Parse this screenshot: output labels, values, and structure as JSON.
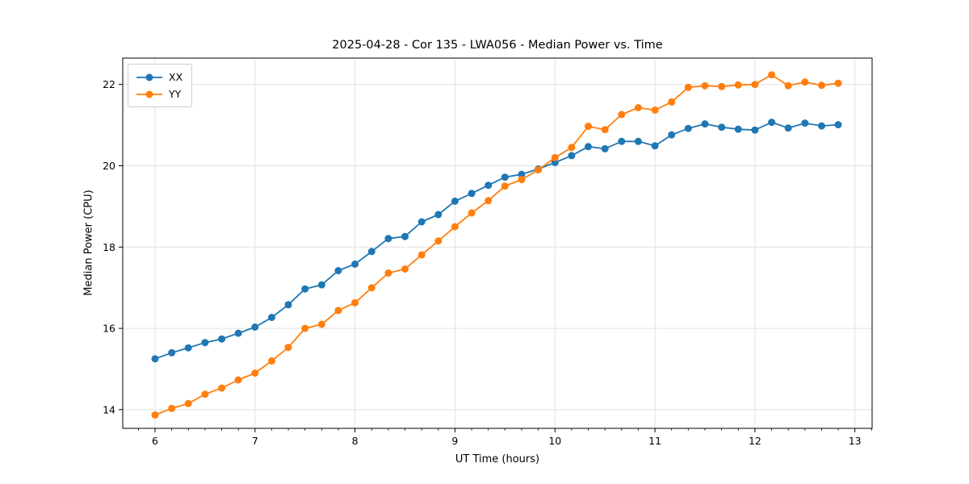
{
  "figure": {
    "title": "2025-04-28 - Cor 135 - LWA056 - Median Power vs. Time"
  },
  "chart_data": {
    "type": "line",
    "title": "2025-04-28 - Cor 135 - LWA056 - Median Power vs. Time",
    "xlabel": "UT Time (hours)",
    "ylabel": "Median Power (CPU)",
    "xlim": [
      5.677,
      13.172
    ],
    "ylim": [
      13.54,
      22.65
    ],
    "xticks": [
      6,
      7,
      8,
      9,
      10,
      11,
      12,
      13
    ],
    "yticks": [
      14,
      16,
      18,
      20,
      22
    ],
    "minor_xtick_interval_hours": 0.1667,
    "grid": true,
    "legend_position": "upper-left",
    "marker": "circle",
    "x": [
      6.0,
      6.167,
      6.333,
      6.5,
      6.667,
      6.833,
      7.0,
      7.167,
      7.333,
      7.5,
      7.667,
      7.833,
      8.0,
      8.167,
      8.333,
      8.5,
      8.667,
      8.833,
      9.0,
      9.167,
      9.333,
      9.5,
      9.667,
      9.833,
      10.0,
      10.167,
      10.333,
      10.5,
      10.667,
      10.833,
      11.0,
      11.167,
      11.333,
      11.5,
      11.667,
      11.833,
      12.0,
      12.167,
      12.333,
      12.5,
      12.667,
      12.833
    ],
    "series": [
      {
        "name": "XX",
        "color": "#1f77b4",
        "values": [
          15.25,
          15.4,
          15.52,
          15.65,
          15.74,
          15.88,
          16.03,
          16.27,
          16.58,
          16.97,
          17.07,
          17.42,
          17.58,
          17.89,
          18.21,
          18.26,
          18.62,
          18.8,
          19.13,
          19.32,
          19.52,
          19.72,
          19.79,
          19.92,
          20.08,
          20.25,
          20.47,
          20.42,
          20.6,
          20.6,
          20.49,
          20.76,
          20.92,
          21.03,
          20.95,
          20.9,
          20.88,
          21.07,
          20.93,
          21.05,
          20.98,
          21.01
        ]
      },
      {
        "name": "YY",
        "color": "#ff7f0e",
        "values": [
          13.87,
          14.03,
          14.15,
          14.38,
          14.53,
          14.73,
          14.9,
          15.2,
          15.53,
          16.0,
          16.1,
          16.44,
          16.63,
          17.0,
          17.36,
          17.46,
          17.81,
          18.15,
          18.5,
          18.84,
          19.14,
          19.5,
          19.66,
          19.9,
          20.2,
          20.45,
          20.97,
          20.89,
          21.26,
          21.43,
          21.37,
          21.57,
          21.93,
          21.97,
          21.95,
          21.99,
          22.0,
          22.24,
          21.97,
          22.06,
          21.98,
          22.03
        ]
      }
    ],
    "style": {
      "grid_color": "#dedede",
      "spine_color": "#000000",
      "tick_color": "#000000",
      "line_width": 1.8,
      "marker_radius": 4.5
    }
  }
}
